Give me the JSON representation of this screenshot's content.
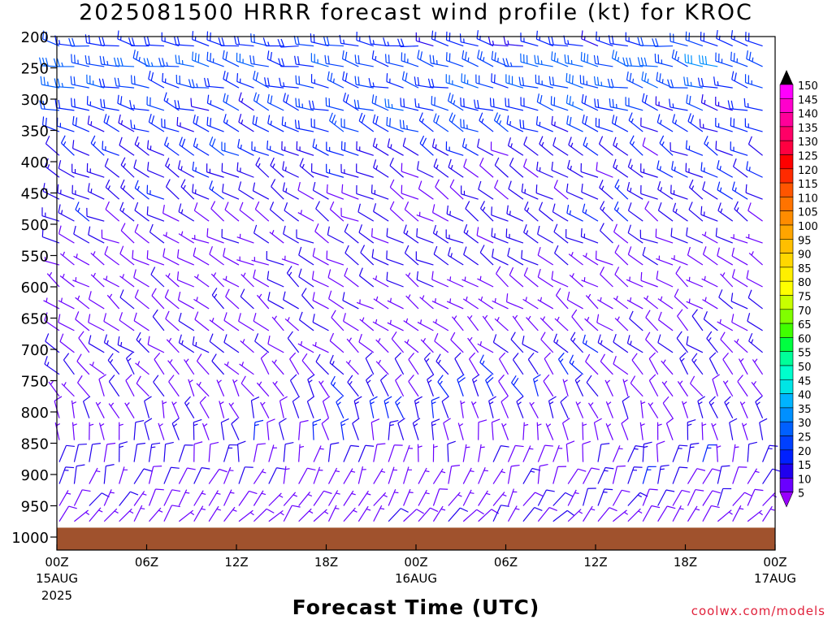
{
  "title": "2025081500 HRRR forecast wind profile (kt) for KROC",
  "credit": "coolwx.com/models",
  "chart_data": {
    "type": "wind-barb-profile",
    "title": "2025081500 HRRR forecast wind profile (kt) for KROC",
    "xlabel": "Forecast Time (UTC)",
    "ylabel": "",
    "x_range_hours": [
      0,
      48
    ],
    "y_levels_hpa": [
      200,
      250,
      300,
      350,
      400,
      450,
      500,
      550,
      600,
      650,
      700,
      750,
      800,
      850,
      900,
      950,
      1000
    ],
    "x_ticks": [
      {
        "hour": 0,
        "label": "00Z",
        "sub1": "15AUG",
        "sub2": "2025"
      },
      {
        "hour": 6,
        "label": "06Z",
        "sub1": "",
        "sub2": ""
      },
      {
        "hour": 12,
        "label": "12Z",
        "sub1": "",
        "sub2": ""
      },
      {
        "hour": 18,
        "label": "18Z",
        "sub1": "",
        "sub2": ""
      },
      {
        "hour": 24,
        "label": "00Z",
        "sub1": "16AUG",
        "sub2": ""
      },
      {
        "hour": 30,
        "label": "06Z",
        "sub1": "",
        "sub2": ""
      },
      {
        "hour": 36,
        "label": "12Z",
        "sub1": "",
        "sub2": ""
      },
      {
        "hour": 42,
        "label": "18Z",
        "sub1": "",
        "sub2": ""
      },
      {
        "hour": 48,
        "label": "00Z",
        "sub1": "17AUG",
        "sub2": ""
      }
    ],
    "y_ticks": [
      "200",
      "250",
      "300",
      "350",
      "400",
      "450",
      "500",
      "550",
      "600",
      "650",
      "700",
      "750",
      "800",
      "850",
      "900",
      "950",
      "1000"
    ],
    "legend": {
      "placement": "right",
      "labels": [
        "150",
        "145",
        "140",
        "135",
        "130",
        "125",
        "120",
        "115",
        "110",
        "105",
        "100",
        "95",
        "90",
        "85",
        "80",
        "75",
        "70",
        "65",
        "60",
        "55",
        "50",
        "45",
        "40",
        "35",
        "30",
        "25",
        "20",
        "15",
        "10",
        "5"
      ],
      "colors": [
        "#ff00ff",
        "#ff00cc",
        "#ff0099",
        "#ff0066",
        "#ff0040",
        "#ff0000",
        "#ff2a00",
        "#ff5500",
        "#ff7300",
        "#ff8c00",
        "#ffa500",
        "#ffbf00",
        "#ffd700",
        "#ffef00",
        "#ffff00",
        "#c8ff00",
        "#80ff00",
        "#40ff00",
        "#00ff40",
        "#00ff99",
        "#00ffcc",
        "#00e5e5",
        "#00b4ff",
        "#0090ff",
        "#0060ff",
        "#0040ff",
        "#0020ff",
        "#2000ee",
        "#6a00ff",
        "#9900ff"
      ]
    },
    "ground": {
      "level_hpa": 985,
      "color": "#a0522d"
    },
    "bands": [
      {
        "level": 215,
        "base": 18,
        "var": 3,
        "dir": 280
      },
      {
        "level": 248,
        "base": 24,
        "var": 5,
        "dir": 285
      },
      {
        "level": 282,
        "base": 22,
        "var": 5,
        "dir": 285
      },
      {
        "level": 318,
        "base": 20,
        "var": 5,
        "dir": 290
      },
      {
        "level": 352,
        "base": 18,
        "var": 4,
        "dir": 295
      },
      {
        "level": 390,
        "base": 15,
        "var": 4,
        "dir": 300
      },
      {
        "level": 425,
        "base": 13,
        "var": 3,
        "dir": 300
      },
      {
        "level": 460,
        "base": 12,
        "var": 3,
        "dir": 300
      },
      {
        "level": 495,
        "base": 11,
        "var": 3,
        "dir": 300
      },
      {
        "level": 530,
        "base": 10,
        "var": 3,
        "dir": 300
      },
      {
        "level": 565,
        "base": 9,
        "var": 3,
        "dir": 300
      },
      {
        "level": 600,
        "base": 8,
        "var": 3,
        "dir": 305
      },
      {
        "level": 635,
        "base": 8,
        "var": 3,
        "dir": 305
      },
      {
        "level": 670,
        "base": 8,
        "var": 3,
        "dir": 310
      },
      {
        "level": 705,
        "base": 9,
        "var": 4,
        "dir": 310
      },
      {
        "level": 740,
        "base": 10,
        "var": 5,
        "dir": 320
      },
      {
        "level": 775,
        "base": 10,
        "var": 6,
        "dir": 330
      },
      {
        "level": 810,
        "base": 10,
        "var": 6,
        "dir": 340
      },
      {
        "level": 845,
        "base": 9,
        "var": 5,
        "dir": 350
      },
      {
        "level": 880,
        "base": 8,
        "var": 5,
        "dir": 10
      },
      {
        "level": 915,
        "base": 8,
        "var": 5,
        "dir": 20
      },
      {
        "level": 950,
        "base": 8,
        "var": 4,
        "dir": 30
      },
      {
        "level": 975,
        "base": 7,
        "var": 3,
        "dir": 40
      }
    ]
  }
}
